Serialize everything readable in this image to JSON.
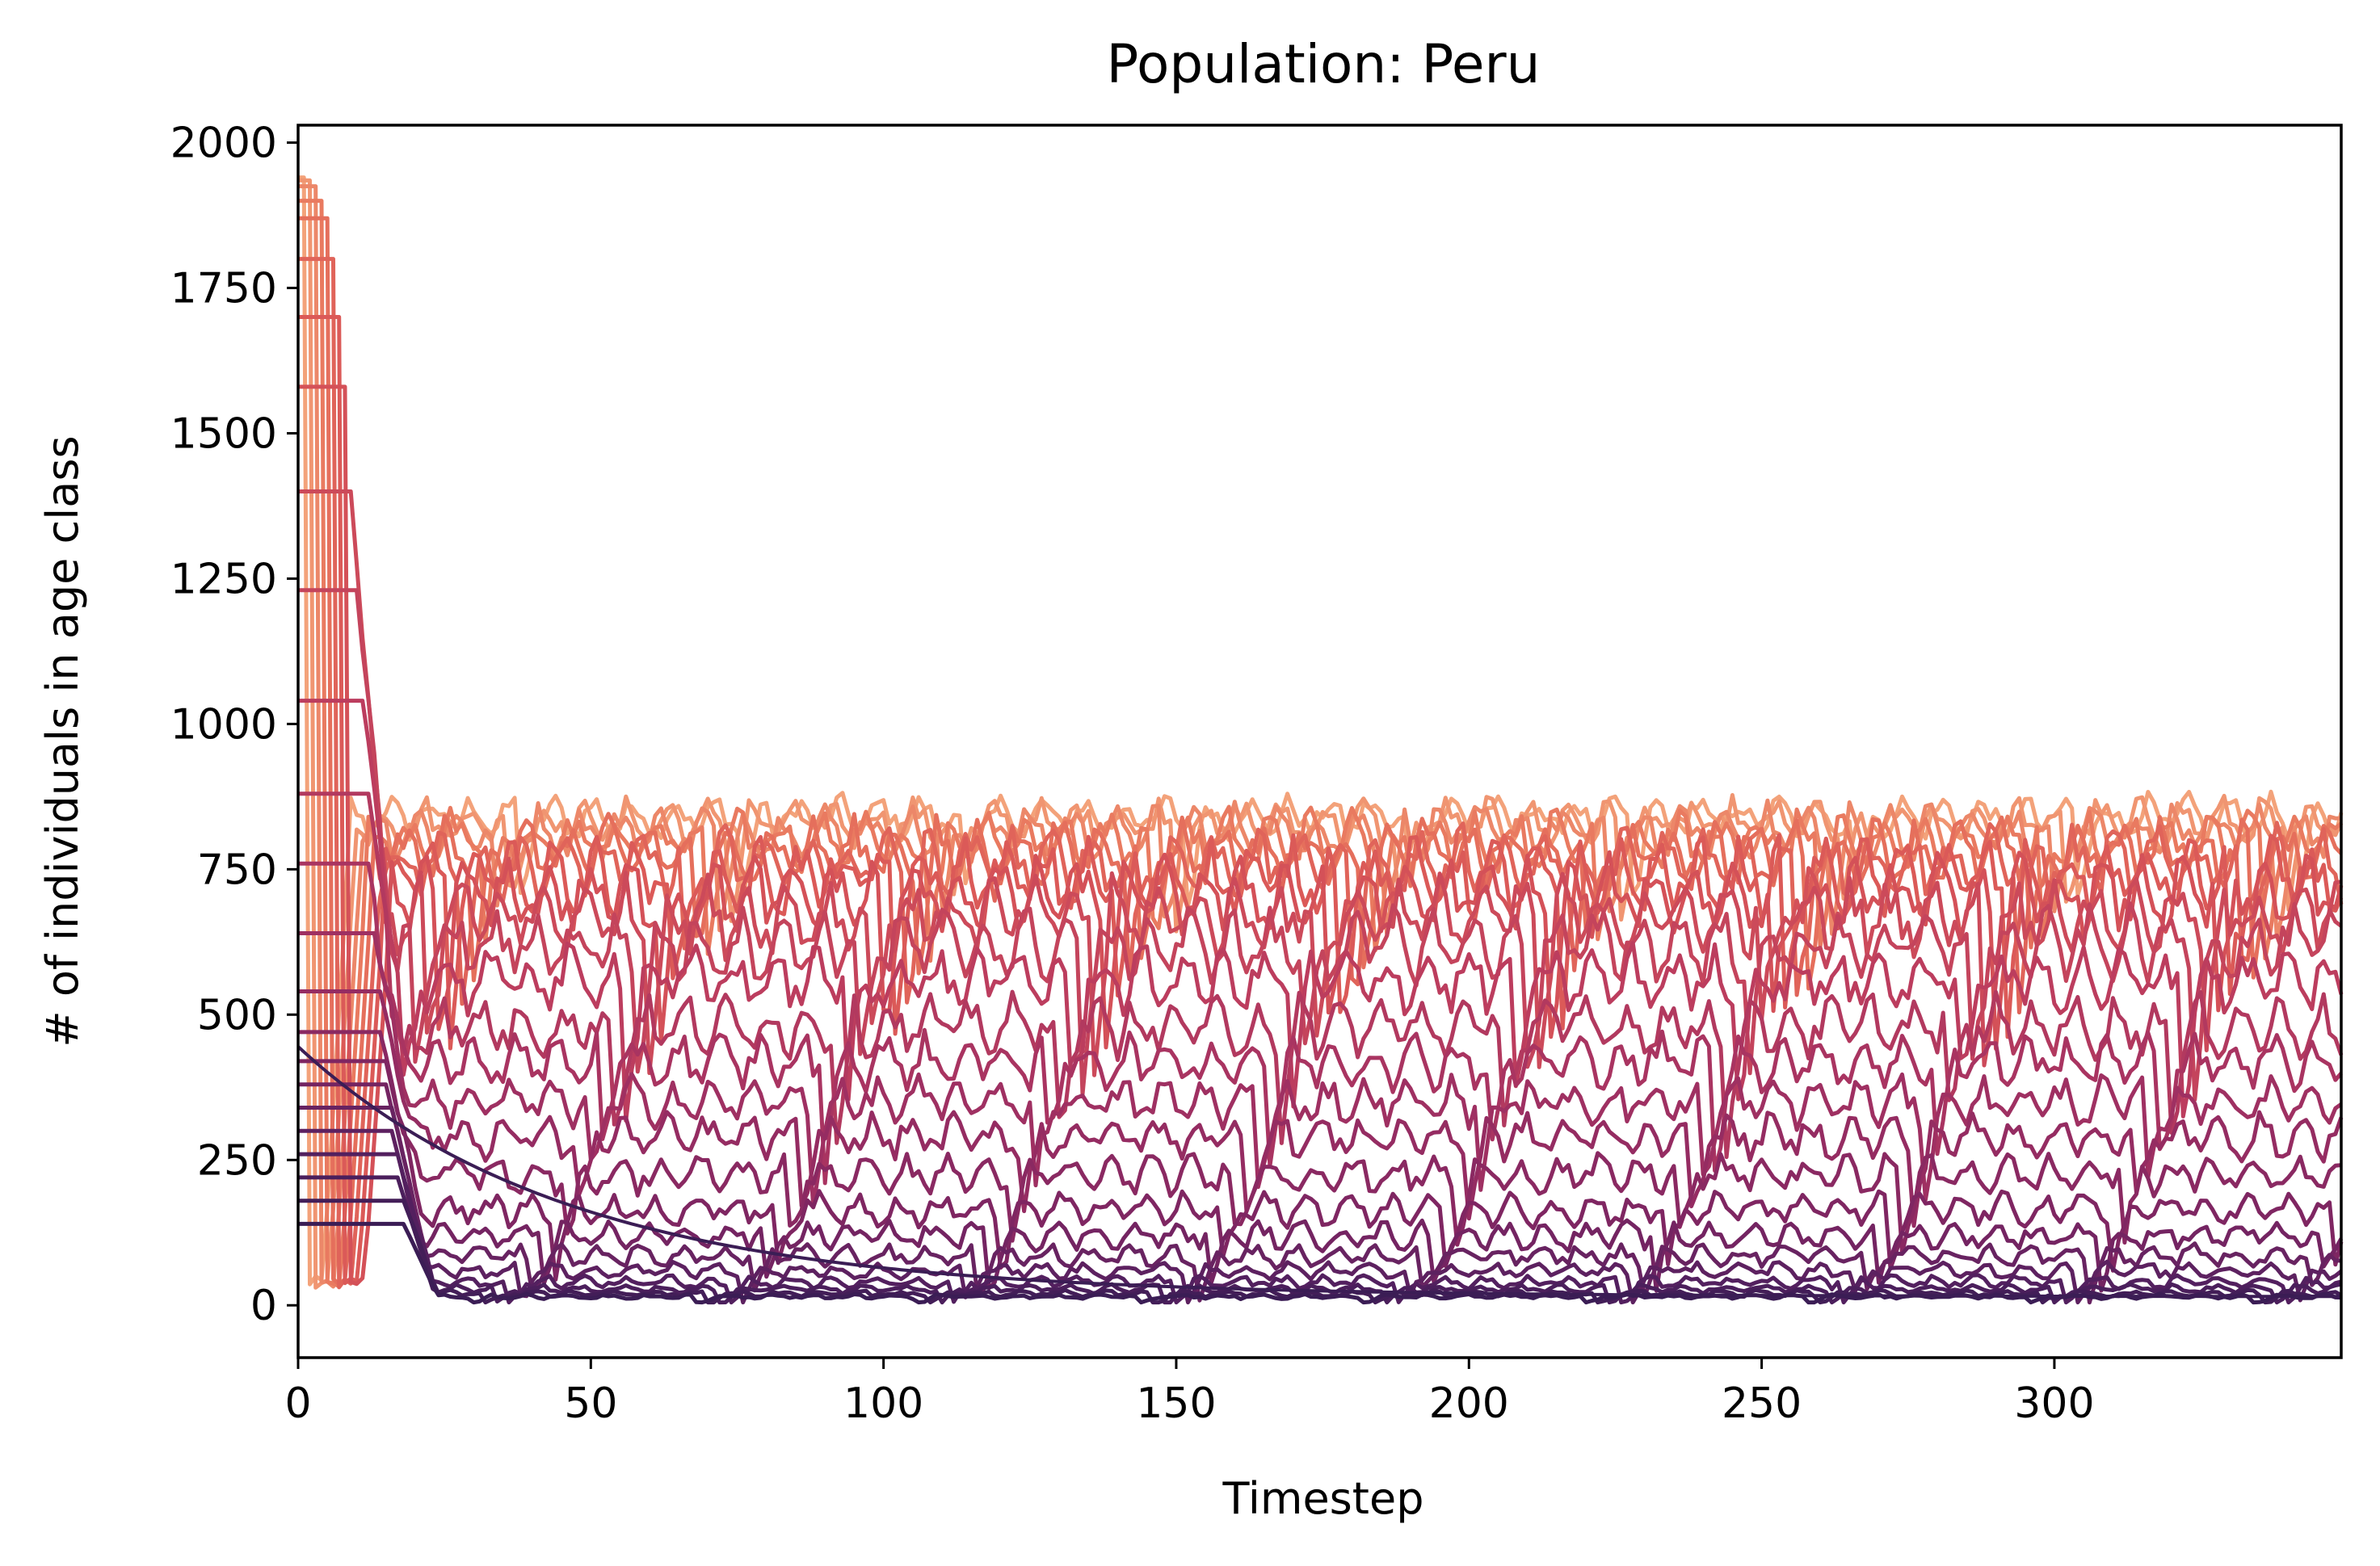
{
  "chart_data": {
    "type": "line",
    "title": "Population: Peru",
    "xlabel": "Timestep",
    "ylabel": "# of individuals in age class",
    "xlim": [
      0,
      349
    ],
    "ylim": [
      -90,
      2030
    ],
    "x_ticks": [
      0,
      50,
      100,
      150,
      200,
      250,
      300
    ],
    "y_ticks": [
      0,
      250,
      500,
      750,
      1000,
      1250,
      1500,
      1750,
      2000
    ],
    "grid": false,
    "legend": "none",
    "colormap": [
      "#F3A27A",
      "#E8765E",
      "#D85457",
      "#BD3E5E",
      "#9E2F62",
      "#7A2562",
      "#552060",
      "#3B1D55"
    ],
    "series_count": 24,
    "series_note_omitted": true,
    "series": [
      {
        "initial": 1940,
        "peak_step": 1,
        "level": 840,
        "amp": 40,
        "dips": [
          20,
          26
        ]
      },
      {
        "initial": 1935,
        "peak_step": 2,
        "level": 830,
        "amp": 45,
        "dips": [
          22,
          28
        ]
      },
      {
        "initial": 1925,
        "peak_step": 3,
        "level": 815,
        "amp": 50,
        "dips": [
          24,
          30
        ]
      },
      {
        "initial": 1900,
        "peak_step": 4,
        "level": 800,
        "amp": 55,
        "dips": [
          26,
          32
        ]
      },
      {
        "initial": 1870,
        "peak_step": 5,
        "level": 780,
        "amp": 60,
        "dips": [
          28,
          34
        ]
      },
      {
        "initial": 1800,
        "peak_step": 6,
        "level": 760,
        "amp": 65,
        "dips": [
          30,
          36
        ]
      },
      {
        "initial": 1700,
        "peak_step": 7,
        "level": 735,
        "amp": 70,
        "dips": [
          32,
          38
        ]
      },
      {
        "initial": 1580,
        "peak_step": 8,
        "level": 705,
        "amp": 70,
        "dips": [
          34,
          40
        ]
      },
      {
        "initial": 1400,
        "peak_step": 9,
        "level": 670,
        "amp": 70,
        "dips": [
          36,
          42
        ]
      },
      {
        "initial": 1230,
        "peak_step": 10,
        "level": 620,
        "amp": 65,
        "dips": [
          38,
          44
        ]
      },
      {
        "initial": 1040,
        "peak_step": 11,
        "level": 560,
        "amp": 60,
        "dips": [
          40,
          46
        ]
      },
      {
        "initial": 880,
        "peak_step": 12,
        "level": 480,
        "amp": 55,
        "dips": [
          42,
          48
        ]
      },
      {
        "initial": 760,
        "peak_step": 12,
        "level": 420,
        "amp": 50,
        "dips": [
          44,
          50
        ]
      },
      {
        "initial": 640,
        "peak_step": 13,
        "level": 350,
        "amp": 45,
        "dips": [
          46,
          52
        ]
      },
      {
        "initial": 540,
        "peak_step": 14,
        "level": 290,
        "amp": 40,
        "dips": [
          48,
          54
        ]
      },
      {
        "initial": 470,
        "peak_step": 14,
        "level": 225,
        "amp": 35,
        "dips": [
          50,
          56
        ]
      },
      {
        "initial": 420,
        "peak_step": 15,
        "level": 165,
        "amp": 30,
        "dips": [
          52,
          58
        ]
      },
      {
        "initial": 380,
        "peak_step": 15,
        "level": 120,
        "amp": 25,
        "dips": [
          54,
          60
        ]
      },
      {
        "initial": 340,
        "peak_step": 16,
        "level": 85,
        "amp": 20,
        "dips": [
          56,
          62
        ]
      },
      {
        "initial": 300,
        "peak_step": 16,
        "level": 60,
        "amp": 15,
        "dips": [
          58,
          64
        ]
      },
      {
        "initial": 260,
        "peak_step": 17,
        "level": 40,
        "amp": 12,
        "dips": [
          60,
          66
        ]
      },
      {
        "initial": 220,
        "peak_step": 17,
        "level": 28,
        "amp": 8,
        "dips": [
          62,
          68
        ]
      },
      {
        "initial": 180,
        "peak_step": 18,
        "level": 20,
        "amp": 6,
        "dips": [
          64,
          70
        ]
      },
      {
        "initial": 140,
        "peak_step": 18,
        "level": 15,
        "amp": 4,
        "dips": [
          66,
          72
        ]
      }
    ],
    "decay_series": {
      "start": 445,
      "end": 15,
      "half_life_steps": 32
    }
  }
}
